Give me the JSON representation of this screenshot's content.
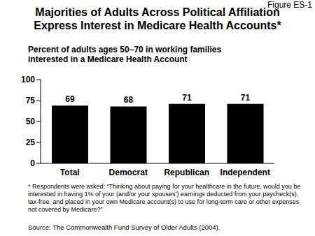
{
  "chart_data": {
    "type": "bar",
    "title": "Majorities of Adults Across Political Affiliation\nExpress Interest in Medicare Health Accounts*",
    "subtitle": "Percent of adults ages 50–70 in working families\ninterested in a Medicare Health Account",
    "annotations": [
      "Figure ES-1",
      "* Respondents were asked: “Thinking about paying for your healthcare in the future, would you be interested in having 1% of your (and/or your spouses’) earnings deducted from your paycheck(s), tax-free, and placed in your own Medicare account(s) to use for long-term care or other expenses not covered by Medicare?”",
      "Source: The Commonwealth Fund Survey of Older Adults (2004)."
    ],
    "categories": [
      "Total",
      "Democrat",
      "Republican",
      "Independent"
    ],
    "values": [
      69,
      68,
      71,
      71
    ],
    "color": "#000000",
    "ylim": [
      0,
      100
    ],
    "yticks": [
      0,
      25,
      50,
      75,
      100
    ],
    "grid": false,
    "data_labels": true
  }
}
